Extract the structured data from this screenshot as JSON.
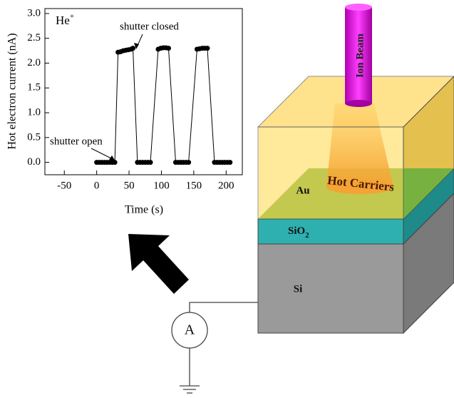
{
  "chart_data": {
    "type": "line",
    "annotations": {
      "ion": "He",
      "ion_charge": "+",
      "open": "shutter open",
      "closed": "shutter closed"
    },
    "xlabel": "Time (s)",
    "ylabel": "Hot electron current (nA)",
    "x": [
      0,
      4,
      8,
      12,
      16,
      20,
      24,
      28,
      33,
      37,
      41,
      45,
      49,
      53,
      56,
      63,
      67,
      71,
      75,
      79,
      83,
      95,
      99,
      103,
      107,
      111,
      122,
      126,
      130,
      134,
      138,
      142,
      155,
      159,
      163,
      167,
      171,
      182,
      186,
      190,
      194,
      198,
      202,
      206
    ],
    "values": [
      0,
      0,
      0,
      0,
      0,
      0,
      0,
      0,
      2.22,
      2.23,
      2.25,
      2.26,
      2.27,
      2.28,
      2.3,
      0,
      0,
      0,
      0,
      0,
      0,
      2.28,
      2.3,
      2.31,
      2.31,
      2.3,
      0,
      0,
      0,
      0,
      0,
      0,
      2.28,
      2.29,
      2.3,
      2.3,
      2.3,
      0,
      0,
      0,
      0,
      0,
      0,
      0
    ],
    "color": "#000000",
    "xlim": [
      -80,
      225
    ],
    "xticks": [
      -50,
      0,
      50,
      100,
      150,
      200
    ],
    "ylim": [
      -0.25,
      3.1
    ],
    "yticks": [
      {
        "value": 0,
        "label": "0.0"
      },
      {
        "value": 0.5,
        "label": "0.5"
      },
      {
        "value": 1,
        "label": "1.0"
      },
      {
        "value": 1.5,
        "label": "1.5"
      },
      {
        "value": 2,
        "label": "2.0"
      },
      {
        "value": 2.5,
        "label": "2.5"
      },
      {
        "value": 3,
        "label": "3.0"
      }
    ]
  },
  "diagram": {
    "ion_beam": "Ion Beam",
    "hot_carriers": "Hot Carriers",
    "au": "Au",
    "sio": "SiO",
    "sio_sub": "2",
    "si": "Si",
    "ammeter": "A"
  }
}
